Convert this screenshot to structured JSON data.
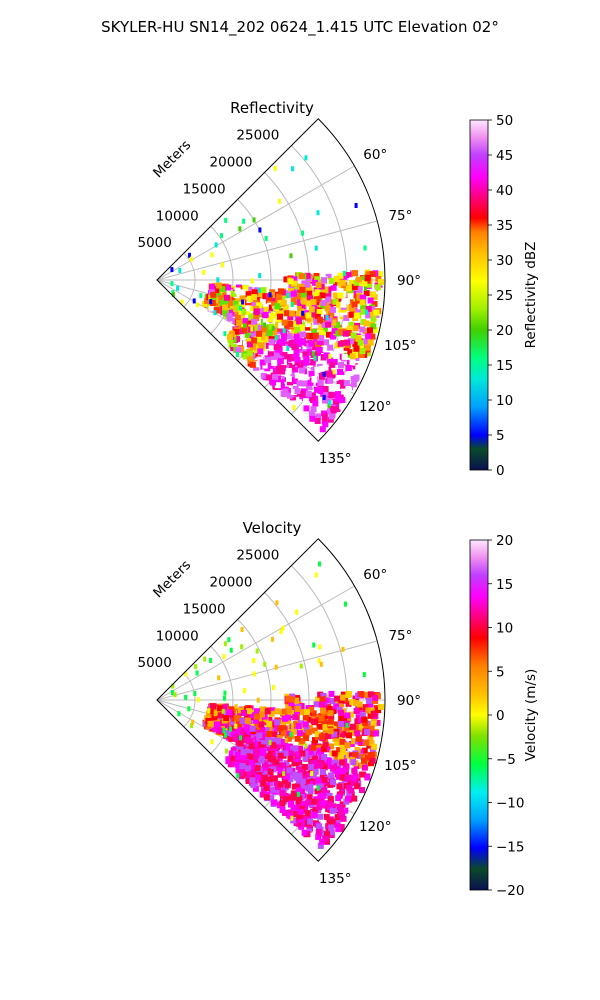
{
  "suptitle": "SKYLER-HU  SN14_202  0624_1.415 UTC Elevation 02°",
  "range_label": "Meters",
  "chart_data": [
    {
      "type": "heatmap",
      "title": "Reflectivity",
      "colorbar_label": "Reflectivity dBZ",
      "colorbar_ticks": [
        "0",
        "5",
        "10",
        "15",
        "20",
        "25",
        "30",
        "35",
        "40",
        "45",
        "50"
      ],
      "vmin": 0,
      "vmax": 50,
      "range_ticks": [
        "5000",
        "10000",
        "15000",
        "20000",
        "25000"
      ],
      "azimuth_ticks": [
        "60°",
        "75°",
        "90°",
        "105°",
        "120°",
        "135°"
      ],
      "azimuth_range_deg": [
        45,
        135
      ],
      "max_range_m": 30000,
      "grid": true
    },
    {
      "type": "heatmap",
      "title": "Velocity",
      "colorbar_label": "Velocity (m/s)",
      "colorbar_ticks": [
        "−20",
        "−15",
        "−10",
        "−5",
        "0",
        "5",
        "10",
        "15",
        "20"
      ],
      "vmin": -20,
      "vmax": 20,
      "range_ticks": [
        "5000",
        "10000",
        "15000",
        "20000",
        "25000"
      ],
      "azimuth_ticks": [
        "60°",
        "75°",
        "90°",
        "105°",
        "120°",
        "135°"
      ],
      "azimuth_range_deg": [
        45,
        135
      ],
      "max_range_m": 30000,
      "grid": true
    }
  ]
}
